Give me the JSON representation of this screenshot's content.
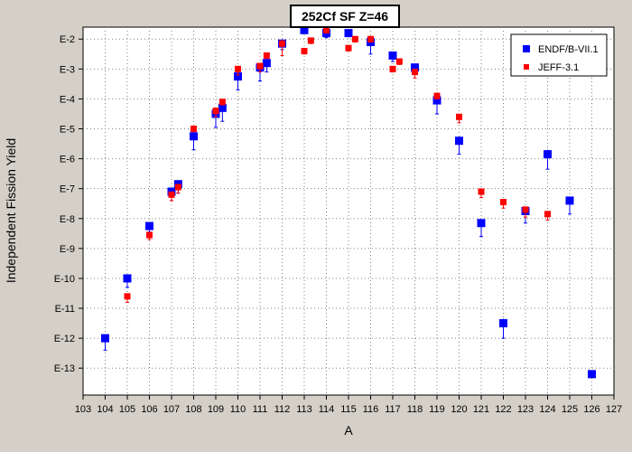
{
  "chart_data": {
    "type": "scatter",
    "title": "252Cf SF Z=46",
    "xlabel": "A",
    "ylabel": "Independent Fission Yield",
    "xlim": [
      103,
      127
    ],
    "ylim_exponent": [
      -13.9,
      -1.6
    ],
    "y_scale": "log",
    "grid": true,
    "legend_position": "top-right",
    "x_ticks": [
      "103",
      "104",
      "105",
      "106",
      "107",
      "108",
      "109",
      "110",
      "111",
      "112",
      "113",
      "114",
      "115",
      "116",
      "117",
      "118",
      "119",
      "120",
      "121",
      "122",
      "123",
      "124",
      "125",
      "126",
      "127"
    ],
    "y_ticks": [
      {
        "exp": -2,
        "label": "E-2"
      },
      {
        "exp": -3,
        "label": "E-3"
      },
      {
        "exp": -4,
        "label": "E-4"
      },
      {
        "exp": -5,
        "label": "E-5"
      },
      {
        "exp": -6,
        "label": "E-6"
      },
      {
        "exp": -7,
        "label": "E-7"
      },
      {
        "exp": -8,
        "label": "E-8"
      },
      {
        "exp": -9,
        "label": "E-9"
      },
      {
        "exp": -10,
        "label": "E-10"
      },
      {
        "exp": -11,
        "label": "E-11"
      },
      {
        "exp": -12,
        "label": "E-12"
      },
      {
        "exp": -13,
        "label": "E-13"
      }
    ],
    "series": [
      {
        "name": "ENDF/B-VII.1",
        "color": "#0000ff",
        "marker": "square-large",
        "points": [
          {
            "x": 104,
            "y_exp": -12.0,
            "err_exp": 0.4
          },
          {
            "x": 105,
            "y_exp": -10.0,
            "err_exp": 0.3
          },
          {
            "x": 106,
            "y_exp": -8.25,
            "err_exp": 0.2
          },
          {
            "x": 107,
            "y_exp": -7.1,
            "err_exp": 0.3
          },
          {
            "x": 107.3,
            "y_exp": -6.85,
            "err_exp": 0.3
          },
          {
            "x": 108,
            "y_exp": -5.25,
            "err_exp": 0.45
          },
          {
            "x": 109,
            "y_exp": -4.5,
            "err_exp": 0.45
          },
          {
            "x": 109.3,
            "y_exp": -4.3,
            "err_exp": 0.45
          },
          {
            "x": 110,
            "y_exp": -3.25,
            "err_exp": 0.45
          },
          {
            "x": 111,
            "y_exp": -2.95,
            "err_exp": 0.45
          },
          {
            "x": 111.3,
            "y_exp": -2.8,
            "err_exp": 0.3
          },
          {
            "x": 112,
            "y_exp": -2.15,
            "err_exp": 0.2
          },
          {
            "x": 113,
            "y_exp": -1.7,
            "err_exp": 0.0
          },
          {
            "x": 114,
            "y_exp": -1.8,
            "err_exp": 0.15
          },
          {
            "x": 115,
            "y_exp": -1.8,
            "err_exp": 0.0
          },
          {
            "x": 116,
            "y_exp": -2.1,
            "err_exp": 0.4
          },
          {
            "x": 117,
            "y_exp": -2.55,
            "err_exp": 0.2
          },
          {
            "x": 118,
            "y_exp": -2.95,
            "err_exp": 0.15
          },
          {
            "x": 119,
            "y_exp": -4.05,
            "err_exp": 0.45
          },
          {
            "x": 120,
            "y_exp": -5.4,
            "err_exp": 0.45
          },
          {
            "x": 121,
            "y_exp": -8.15,
            "err_exp": 0.45
          },
          {
            "x": 122,
            "y_exp": -11.5,
            "err_exp": 0.5
          },
          {
            "x": 123,
            "y_exp": -7.75,
            "err_exp": 0.4
          },
          {
            "x": 124,
            "y_exp": -5.85,
            "err_exp": 0.5
          },
          {
            "x": 125,
            "y_exp": -7.4,
            "err_exp": 0.45
          },
          {
            "x": 126,
            "y_exp": -13.2,
            "err_exp": 0.0
          }
        ]
      },
      {
        "name": "JEFF-3.1",
        "color": "#ff0000",
        "marker": "square-small",
        "points": [
          {
            "x": 105,
            "y_exp": -10.6,
            "err_exp": 0.2
          },
          {
            "x": 106,
            "y_exp": -8.55,
            "err_exp": 0.15
          },
          {
            "x": 107,
            "y_exp": -7.2,
            "err_exp": 0.2
          },
          {
            "x": 107.3,
            "y_exp": -6.95,
            "err_exp": 0.2
          },
          {
            "x": 108,
            "y_exp": -5.0,
            "err_exp": 0.1
          },
          {
            "x": 109,
            "y_exp": -4.4,
            "err_exp": 0.2
          },
          {
            "x": 109.3,
            "y_exp": -4.1,
            "err_exp": 0.1
          },
          {
            "x": 110,
            "y_exp": -3.0,
            "err_exp": 0.2
          },
          {
            "x": 111,
            "y_exp": -2.9,
            "err_exp": 0.2
          },
          {
            "x": 111.3,
            "y_exp": -2.55,
            "err_exp": 0.1
          },
          {
            "x": 112,
            "y_exp": -2.15,
            "err_exp": 0.4
          },
          {
            "x": 113,
            "y_exp": -2.4,
            "err_exp": 0.1
          },
          {
            "x": 113.3,
            "y_exp": -2.05,
            "err_exp": 0.1
          },
          {
            "x": 114,
            "y_exp": -1.7,
            "err_exp": 0.1
          },
          {
            "x": 115,
            "y_exp": -2.3,
            "err_exp": 0.1
          },
          {
            "x": 115.3,
            "y_exp": -2.0,
            "err_exp": 0.1
          },
          {
            "x": 116,
            "y_exp": -2.0,
            "err_exp": 0.1
          },
          {
            "x": 117,
            "y_exp": -3.0,
            "err_exp": 0.1
          },
          {
            "x": 117.3,
            "y_exp": -2.75,
            "err_exp": 0.1
          },
          {
            "x": 118,
            "y_exp": -3.1,
            "err_exp": 0.2
          },
          {
            "x": 119,
            "y_exp": -3.9,
            "err_exp": 0.1
          },
          {
            "x": 120,
            "y_exp": -4.6,
            "err_exp": 0.2
          },
          {
            "x": 121,
            "y_exp": -7.1,
            "err_exp": 0.2
          },
          {
            "x": 122,
            "y_exp": -7.45,
            "err_exp": 0.2
          },
          {
            "x": 123,
            "y_exp": -7.7,
            "err_exp": 0.25
          },
          {
            "x": 124,
            "y_exp": -7.85,
            "err_exp": 0.2
          }
        ]
      }
    ]
  }
}
